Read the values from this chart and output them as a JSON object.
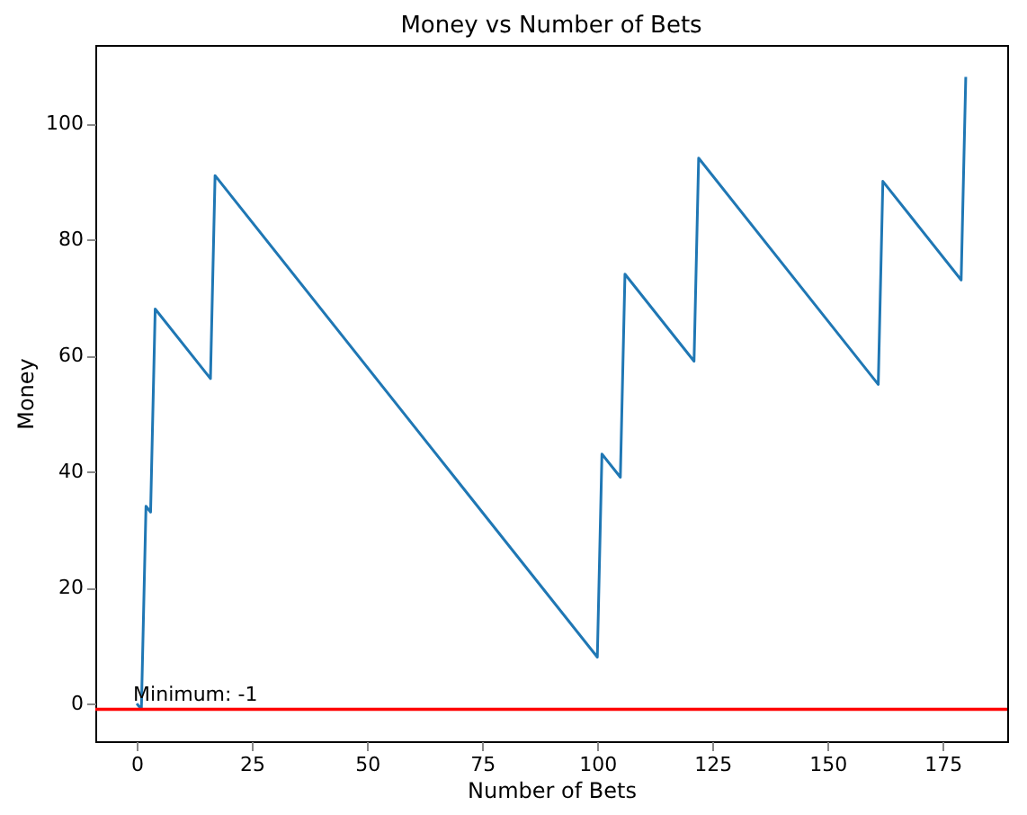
{
  "chart_data": {
    "type": "line",
    "title": "Money vs Number of Bets",
    "xlabel": "Number of Bets",
    "ylabel": "Money",
    "x": [
      0,
      1,
      2,
      3,
      4,
      16,
      17,
      100,
      101,
      105,
      106,
      121,
      122,
      161,
      162,
      179,
      180
    ],
    "series": [
      {
        "color": "#1f77b4",
        "values": [
          0,
          -1,
          34,
          33,
          68,
          56,
          91,
          8,
          43,
          39,
          74,
          59,
          94,
          55,
          90,
          73,
          108
        ]
      }
    ],
    "xlim": [
      -9,
      189
    ],
    "xticks": [
      0,
      25,
      50,
      75,
      100,
      125,
      150,
      175
    ],
    "ylim": [
      -6.5,
      113.5
    ],
    "yticks": [
      0,
      20,
      40,
      60,
      80,
      100
    ],
    "ref_lines": [
      {
        "axis": "y",
        "value": -1,
        "color": "#ff0000"
      }
    ],
    "annotations": [
      {
        "text": "Minimum: -1",
        "x": 0,
        "y": -1
      }
    ],
    "grid": false
  }
}
